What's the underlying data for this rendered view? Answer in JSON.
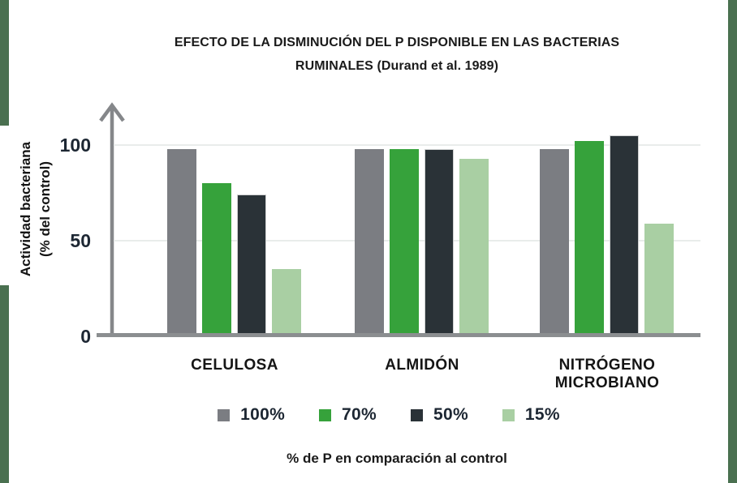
{
  "frame": {
    "border_color": "#4a7050",
    "axis_color": "#85878a",
    "baseline_color": "#8b8e90",
    "gridline_color": "#e9eceb",
    "text_color": "#1d2733"
  },
  "title": {
    "line1": "EFECTO DE LA DISMINUCIÓN DEL P DISPONIBLE EN LAS BACTERIAS",
    "line2": "RUMINALES (Durand et al. 1989)"
  },
  "y_axis": {
    "label_line1": "Actividad bacteriana",
    "label_line2": "(% del control)"
  },
  "x_axis": {
    "caption": "% de P en comparación al control"
  },
  "chart_data": {
    "type": "bar",
    "title": "EFECTO DE LA DISMINUCIÓN DEL P DISPONIBLE EN LAS BACTERIAS RUMINALES (Durand et al. 1989)",
    "categories": [
      "CELULOSA",
      "ALMIDÓN",
      "NITRÓGENO MICROBIANO"
    ],
    "series": [
      {
        "name": "100%",
        "color": "#7b7d82",
        "values": [
          98,
          98,
          98
        ]
      },
      {
        "name": "70%",
        "color": "#36a23b",
        "values": [
          80,
          98,
          102
        ]
      },
      {
        "name": "50%",
        "color": "#2a3237",
        "values": [
          74,
          98,
          105
        ],
        "outline": "#cfd1d1"
      },
      {
        "name": "15%",
        "color": "#a9cfa3",
        "values": [
          35,
          93,
          59
        ]
      }
    ],
    "ylabel": "Actividad bacteriana (% del control)",
    "xlabel": "% de P en comparación al control",
    "yticks": [
      0,
      50,
      100
    ],
    "ylim": [
      0,
      120
    ],
    "grid": "horizontal",
    "legend_position": "bottom"
  }
}
